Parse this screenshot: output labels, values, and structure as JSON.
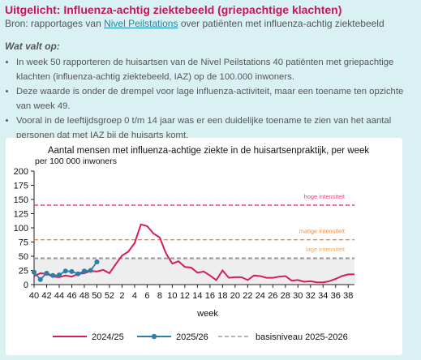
{
  "header": {
    "title": "Uitgelicht: Influenza-achtig ziektebeeld (griepachtige klachten)",
    "source_prefix": "Bron: rapportages van",
    "source_link": "Nivel Peilstations",
    "source_suffix": "over patiënten met influenza-achtig ziektebeeld"
  },
  "summary": {
    "heading": "Wat valt op:",
    "bullets": [
      "In week 50 rapporteren de huisartsen van de Nivel Peilstations 40 patiënten met griepachtige klachten (influenza-achtig ziektebeeld, IAZ) op de 100.000 inwoners.",
      "Deze waarde is onder de drempel voor lage influenza-activiteit, maar een toename ten opzichte van week 49.",
      "Vooral in de leeftijdsgroep 0 t/m 14 jaar was er een duidelijke toename te zien van het aantal personen dat met IAZ bij de huisarts komt."
    ]
  },
  "chart_data": {
    "type": "line",
    "title": "Aantal mensen met influenza-achtige ziekte in de huisartsenpraktijk, per week",
    "subtitle": "per 100 000 inwoners",
    "xlabel": "week",
    "ylabel": "",
    "ylim": [
      0,
      200
    ],
    "yticks": [
      0,
      25,
      50,
      75,
      100,
      125,
      150,
      175,
      200
    ],
    "xticks": [
      "40",
      "42",
      "44",
      "46",
      "48",
      "50",
      "52",
      "2",
      "4",
      "6",
      "8",
      "10",
      "12",
      "14",
      "16",
      "18",
      "20",
      "22",
      "24",
      "26",
      "28",
      "30",
      "32",
      "34",
      "36",
      "38"
    ],
    "legend_position": "bottom",
    "colors": {
      "s2425": "#d81b5c",
      "s2526": "#2a7ea8",
      "basis": "#999999",
      "hoge": "#e0457f",
      "matige": "#f08a3a",
      "lage": "#f2a65a"
    },
    "thresholds": [
      {
        "name": "hoge intensiteit",
        "value": 140
      },
      {
        "name": "matige intensiteit",
        "value": 79
      },
      {
        "name": "lage intensiteit",
        "value": 47
      }
    ],
    "baseline": {
      "name": "basisniveau 2025-2026",
      "value": 46
    },
    "series": [
      {
        "name": "2024/25",
        "start_index": 0,
        "values": [
          15,
          20,
          19,
          14,
          13,
          16,
          14,
          19,
          20,
          24,
          23,
          26,
          20,
          36,
          51,
          58,
          73,
          106,
          103,
          90,
          83,
          55,
          37,
          41,
          31,
          30,
          21,
          23,
          16,
          8,
          25,
          12,
          13,
          13,
          8,
          16,
          15,
          12,
          12,
          14,
          15,
          7,
          8,
          5,
          6,
          4,
          4,
          6,
          10,
          15,
          18,
          18
        ]
      },
      {
        "name": "2025/26",
        "start_index": 0,
        "values": [
          22,
          9,
          20,
          16,
          17,
          24,
          23,
          19,
          24,
          25,
          40
        ]
      }
    ]
  }
}
